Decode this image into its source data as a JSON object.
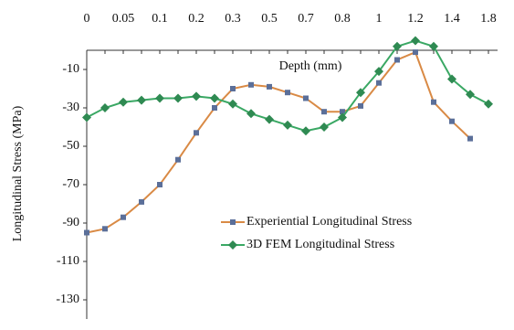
{
  "chart_data": {
    "type": "line",
    "x_label": "Depth (mm)",
    "y_label": "Longitudinal Stress (MPa)",
    "categories": [
      "0",
      null,
      "0.05",
      null,
      "0.1",
      null,
      "0.2",
      null,
      "0.3",
      null,
      "0.5",
      null,
      "0.7",
      null,
      "0.8",
      null,
      "1",
      null,
      "1.2",
      null,
      "1.4",
      null,
      "1.8"
    ],
    "series": [
      {
        "name": "Experiential Longitudinal Stress",
        "color": "#d98a45",
        "marker_color": "#5b6f99",
        "marker": "square",
        "values": [
          -95,
          -93,
          -87,
          -79,
          -70,
          -57,
          -43,
          -30,
          -20,
          -18,
          -19,
          -22,
          -25,
          -32,
          -32,
          -29,
          -17,
          -5,
          -1,
          -27,
          -37,
          -46,
          null
        ]
      },
      {
        "name": "3D FEM Longitudinal Stress",
        "color": "#3aa864",
        "marker_color": "#2f8a52",
        "marker": "diamond",
        "values": [
          -35,
          -30,
          -27,
          -26,
          -25,
          -25,
          -24,
          -25,
          -28,
          -33,
          -36,
          -39,
          -42,
          -40,
          -35,
          -22,
          -11,
          2,
          5,
          2,
          -15,
          -23,
          -28
        ]
      }
    ],
    "ylim": [
      -140,
      10
    ],
    "yticks": [
      -10,
      -30,
      -50,
      -70,
      -90,
      -110,
      -130
    ],
    "x_axis_at": 0,
    "grid": false
  }
}
